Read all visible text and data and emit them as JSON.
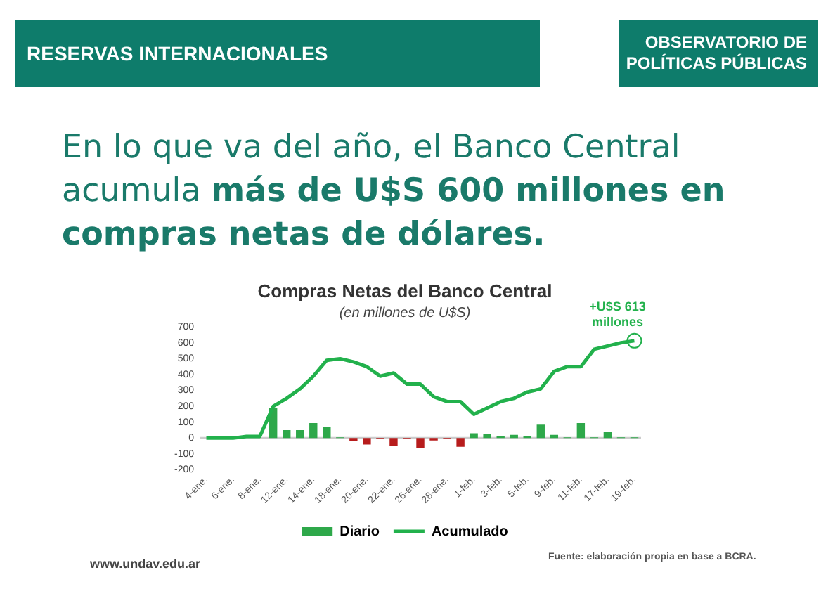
{
  "chart_data": {
    "type": "bar",
    "title": "Compras Netas del Banco Central",
    "subtitle": "(en millones de U$S)",
    "categories": [
      "4-ene.",
      null,
      "6-ene.",
      null,
      "8-ene.",
      null,
      "12-ene.",
      null,
      "14-ene.",
      null,
      "18-ene.",
      null,
      "20-ene.",
      null,
      "22-ene.",
      null,
      "26-ene.",
      null,
      "28-ene.",
      null,
      "1-feb.",
      null,
      "3-feb.",
      null,
      "5-feb.",
      null,
      "9-feb.",
      null,
      "11-feb.",
      null,
      "17-feb.",
      null,
      "19-feb."
    ],
    "series": [
      {
        "name": "Diario",
        "color": "#2ea84a",
        "colors": [
          "#2ea84a",
          "#2ea84a",
          "#2ea84a",
          "#2ea84a",
          "#2ea84a",
          "#2ea84a",
          "#2ea84a",
          "#2ea84a",
          "#2ea84a",
          "#2ea84a",
          "#2ea84a",
          "#b71c1c",
          "#b71c1c",
          "#b71c1c",
          "#b71c1c",
          "#b71c1c",
          "#b71c1c",
          "#b71c1c",
          "#b71c1c",
          "#b71c1c",
          "#2ea84a",
          "#2ea84a",
          "#2ea84a",
          "#2ea84a",
          "#2ea84a",
          "#2ea84a",
          "#2ea84a",
          "#2ea84a",
          "#2ea84a",
          "#2ea84a",
          "#2ea84a",
          "#2ea84a",
          "#2ea84a"
        ],
        "values": [
          null,
          null,
          null,
          null,
          null,
          190,
          50,
          50,
          95,
          70,
          5,
          -20,
          -40,
          -5,
          -50,
          -5,
          -60,
          -15,
          -5,
          -55,
          30,
          25,
          10,
          20,
          10,
          85,
          20,
          5,
          95,
          5,
          40,
          5,
          5
        ]
      },
      {
        "name": "Acumulado",
        "type": "line",
        "color": "#22b14c",
        "values": [
          0,
          0,
          0,
          10,
          10,
          200,
          250,
          310,
          390,
          490,
          500,
          480,
          450,
          390,
          410,
          340,
          340,
          260,
          230,
          230,
          150,
          190,
          230,
          250,
          290,
          310,
          420,
          450,
          450,
          560,
          580,
          600,
          613
        ]
      }
    ],
    "ylim": [
      -200,
      700
    ],
    "yticks": [
      -200,
      -100,
      0,
      100,
      200,
      300,
      400,
      500,
      600,
      700
    ],
    "grid": false,
    "legend": "bottom",
    "ref_lines": [
      {
        "axis": "y",
        "value": 0,
        "color": "#cccccc"
      }
    ],
    "annotations": [
      "RESERVAS INTERNACIONALES",
      "OBSERVATORIO DE POLÍTICAS PÚBLICAS",
      "En lo que va del año, el Banco Central acumula",
      "más de U$S 600 millones en compras netas de dólares.",
      "www.undav.edu.ar",
      "Fuente: elaboración propia en base a BCRA.",
      {
        "text": "+U$S 613 millones",
        "x": "19-feb.",
        "y": 613
      }
    ]
  }
}
